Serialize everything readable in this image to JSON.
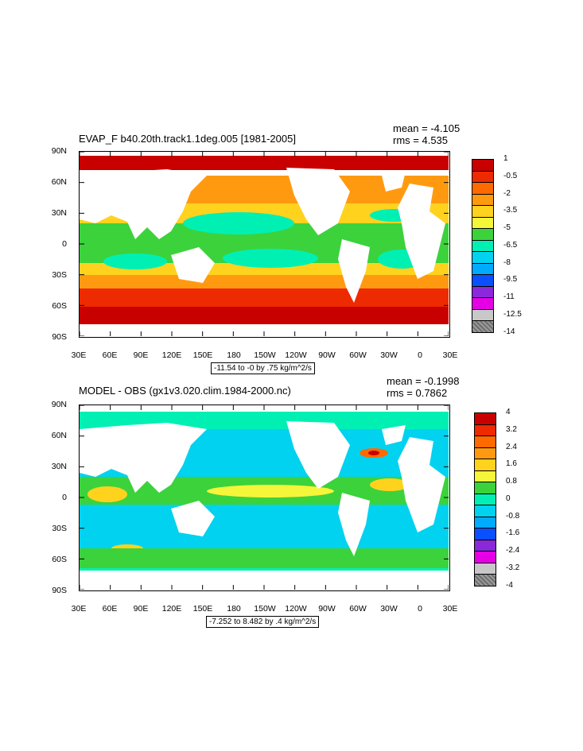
{
  "panels": [
    {
      "title": "EVAP_F b40.20th.track1.1deg.005 [1981-2005]",
      "mean_text": "mean = -4.105",
      "rms_text": "rms = 4.535",
      "range_text": "-11.54 to -0 by .75 kg/m^2/s",
      "colorbar_labels": [
        "1",
        "-0.5",
        "-2",
        "-3.5",
        "-5",
        "-6.5",
        "-8",
        "-9.5",
        "-11",
        "-12.5",
        "-14"
      ],
      "colorbar_colors": [
        "#c80000",
        "#ee2a00",
        "#ff6a00",
        "#ff9a10",
        "#ffd21e",
        "#f5f53a",
        "#3cd23c",
        "#00f0b4",
        "#00d2f0",
        "#00aaff",
        "#0a50ff",
        "#8c28dc",
        "#e600e6",
        "#c8c8c8",
        "#7a7a7a"
      ]
    },
    {
      "title": "MODEL - OBS (gx1v3.020.clim.1984-2000.nc)",
      "mean_text": "mean = -0.1998",
      "rms_text": "rms = 0.7862",
      "range_text": "-7.252 to 8.482 by .4 kg/m^2/s",
      "colorbar_labels": [
        "4",
        "3.2",
        "2.4",
        "1.6",
        "0.8",
        "0",
        "-0.8",
        "-1.6",
        "-2.4",
        "-3.2",
        "-4"
      ],
      "colorbar_colors": [
        "#c80000",
        "#ee2a00",
        "#ff6a00",
        "#ff9a10",
        "#ffd21e",
        "#f5f53a",
        "#3cd23c",
        "#00f0b4",
        "#00d2f0",
        "#00aaff",
        "#0a50ff",
        "#8c28dc",
        "#e600e6",
        "#c8c8c8",
        "#7a7a7a"
      ]
    }
  ],
  "axes": {
    "lat_labels": [
      "90N",
      "60N",
      "30N",
      "0",
      "30S",
      "60S",
      "90S"
    ],
    "lon_labels": [
      "30E",
      "60E",
      "90E",
      "120E",
      "150E",
      "180",
      "150W",
      "120W",
      "90W",
      "60W",
      "30W",
      "0",
      "30E"
    ]
  },
  "chart_data": [
    {
      "type": "heatmap",
      "title": "EVAP_F b40.20th.track1.1deg.005 [1981-2005]",
      "annotations": [
        "mean = -4.105",
        "rms = 4.535",
        "-11.54 to -0 by .75 kg/m^2/s"
      ],
      "x_ticks": [
        "30E",
        "60E",
        "90E",
        "120E",
        "150E",
        "180",
        "150W",
        "120W",
        "90W",
        "60W",
        "30W",
        "0",
        "30E"
      ],
      "y_ticks": [
        "90N",
        "60N",
        "30N",
        "0",
        "30S",
        "60S",
        "90S"
      ],
      "colorbar_levels": [
        1,
        -0.5,
        -2,
        -3.5,
        -5,
        -6.5,
        -8,
        -9.5,
        -11,
        -12.5,
        -14
      ],
      "legend_position": "right",
      "grid": false
    },
    {
      "type": "heatmap",
      "title": "MODEL - OBS (gx1v3.020.clim.1984-2000.nc)",
      "annotations": [
        "mean = -0.1998",
        "rms = 0.7862",
        "-7.252 to 8.482 by .4 kg/m^2/s"
      ],
      "x_ticks": [
        "30E",
        "60E",
        "90E",
        "120E",
        "150E",
        "180",
        "150W",
        "120W",
        "90W",
        "60W",
        "30W",
        "0",
        "30E"
      ],
      "y_ticks": [
        "90N",
        "60N",
        "30N",
        "0",
        "30S",
        "60S",
        "90S"
      ],
      "colorbar_levels": [
        4,
        3.2,
        2.4,
        1.6,
        0.8,
        0,
        -0.8,
        -1.6,
        -2.4,
        -3.2,
        -4
      ],
      "legend_position": "right",
      "grid": false
    }
  ]
}
